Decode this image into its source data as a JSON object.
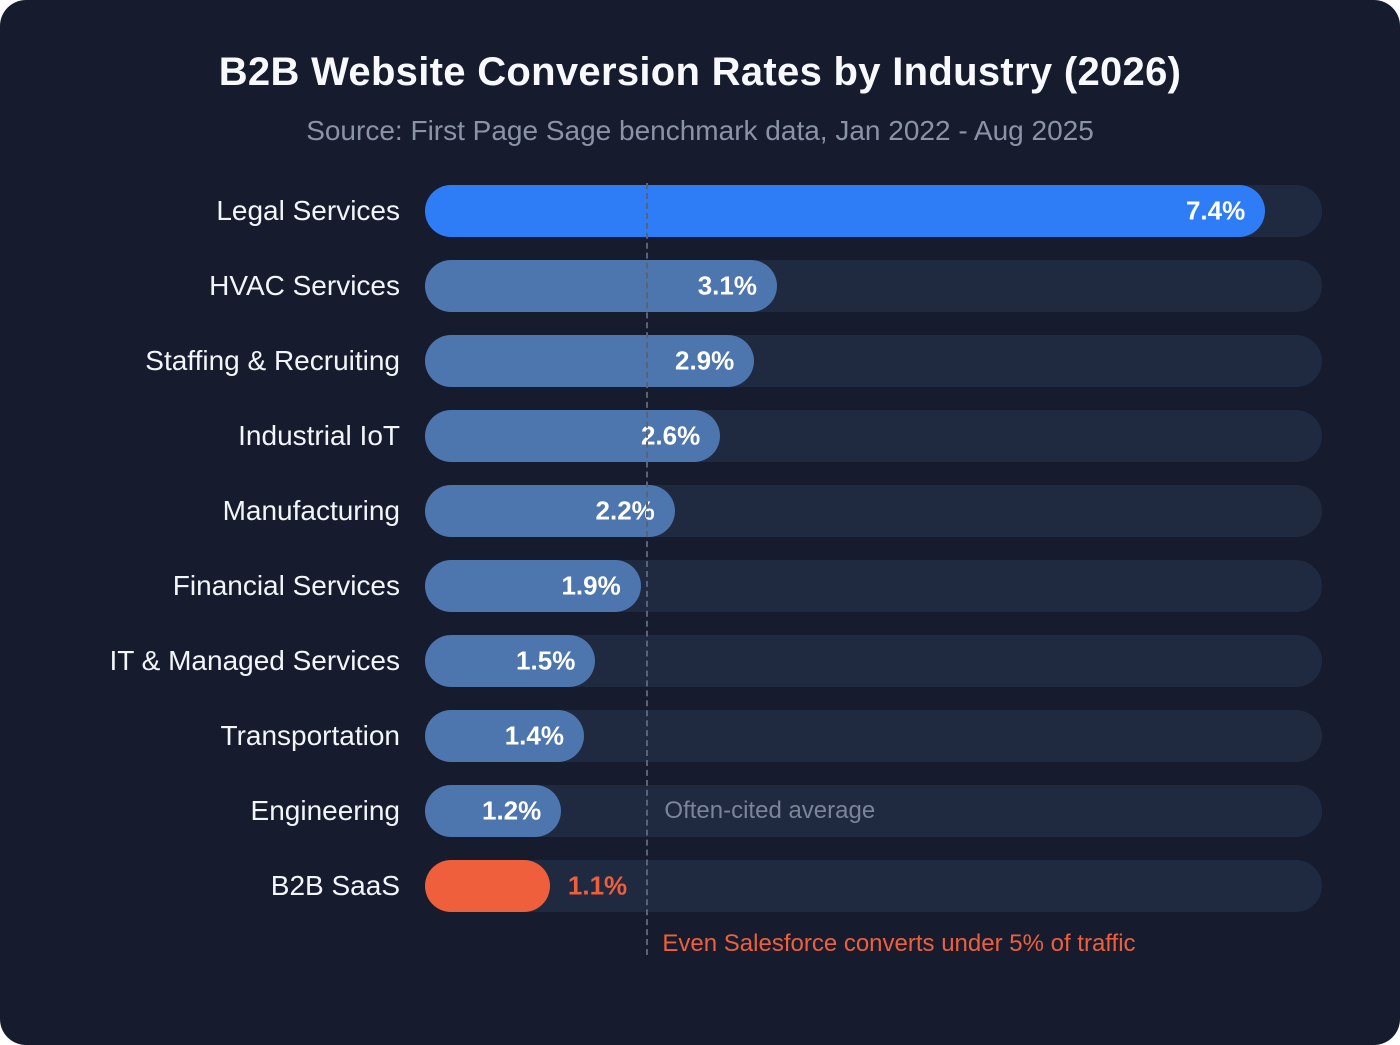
{
  "title": "B2B Website Conversion Rates by Industry (2026)",
  "subtitle": "Source: First Page Sage benchmark data, Jan 2022 - Aug 2025",
  "chart_data": {
    "type": "bar",
    "orientation": "horizontal",
    "categories": [
      "Legal Services",
      "HVAC Services",
      "Staffing & Recruiting",
      "Industrial IoT",
      "Manufacturing",
      "Financial Services",
      "IT & Managed Services",
      "Transportation",
      "Engineering",
      "B2B SaaS"
    ],
    "values": [
      7.4,
      3.1,
      2.9,
      2.6,
      2.2,
      1.9,
      1.5,
      1.4,
      1.2,
      1.1
    ],
    "value_labels": [
      "7.4%",
      "3.1%",
      "2.9%",
      "2.6%",
      "2.2%",
      "1.9%",
      "1.5%",
      "1.4%",
      "1.2%",
      "1.1%"
    ],
    "xlabel": "",
    "ylabel": "",
    "xlim": [
      0,
      7.9
    ],
    "grid": false,
    "legend": "none",
    "average_line": {
      "value": 1.95,
      "label": "Often-cited average"
    },
    "annotation": "Even Salesforce converts under 5% of traffic",
    "highlight_index": 0,
    "accent_index": 9,
    "value_outside_index": 9,
    "colors": {
      "background": "#161c2e",
      "track": "#1f2940",
      "highlight_bar": "#2e7df6",
      "default_bar": "#4d75ae",
      "accent_bar": "#ef5f3c",
      "average_line": "#5a6375",
      "title_text": "#f7f9fc",
      "subtitle_text": "#8b93a6",
      "avg_label_text": "#7c8497"
    }
  }
}
